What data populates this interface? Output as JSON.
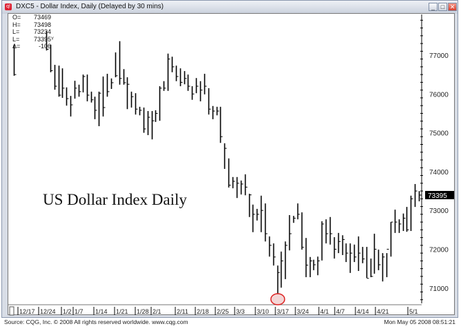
{
  "window": {
    "title": "DXC5 - Dollar Index, Daily (Delayed by 30 mins)",
    "app_icon": "cqg-icon",
    "buttons": {
      "minimize": "_",
      "maximize": "□",
      "close": "✕"
    }
  },
  "quote_box": {
    "rows": [
      {
        "label": "O=",
        "value": "73469"
      },
      {
        "label": "H=",
        "value": "73498"
      },
      {
        "label": "L=",
        "value": "73234"
      },
      {
        "label": "L=",
        "value": "73395",
        "suffix": "Y"
      },
      {
        "label": "Δ=",
        "value": "-106"
      }
    ]
  },
  "annotation": "US Dollar Index Daily",
  "footer": {
    "source": "Source: CQG, Inc. © 2008 All rights reserved worldwide. www.cqg.com",
    "timestamp": "Mon May 05 2008 08:51:21"
  },
  "colors": {
    "bars": "#000000",
    "last_price_bg": "#000000",
    "last_price_fg": "#ffffff",
    "marker": "#dd2222"
  },
  "chart_data": {
    "type": "ohlc",
    "title": "DXC5 - Dollar Index, Daily (Delayed by 30 mins)",
    "ylim": [
      70600,
      77900
    ],
    "y_ticks": [
      71000,
      72000,
      73000,
      74000,
      75000,
      76000,
      77000
    ],
    "y_tick_labels": [
      "71000",
      "72000",
      "73000",
      "74000",
      "75000",
      "76000",
      "77000"
    ],
    "last_price_label": "73395",
    "x_tick_labels": [
      "12/17",
      "12/24",
      "1/2",
      "1/7",
      "1/14",
      "1/21",
      "1/28",
      "2/1",
      "2/11",
      "2/18",
      "2/25",
      "3/3",
      "3/10",
      "3/17",
      "3/24",
      "4/1",
      "4/7",
      "4/14",
      "4/21",
      "5/1"
    ],
    "low_marker_date": "2008-03-17",
    "grid": false,
    "bars_fields": [
      "date",
      "high",
      "low",
      "close"
    ],
    "bars": [
      [
        "2007-12-14",
        77270,
        76470,
        76500
      ],
      [
        "2007-12-26",
        77620,
        77120,
        77150
      ],
      [
        "2007-12-27",
        77270,
        76560,
        76600
      ],
      [
        "2007-12-28",
        76750,
        76110,
        76200
      ],
      [
        "2007-12-31",
        76730,
        75930,
        75970
      ],
      [
        "2008-01-02",
        76660,
        75900,
        76150
      ],
      [
        "2008-01-03",
        76170,
        75700,
        75880
      ],
      [
        "2008-01-04",
        75950,
        75420,
        75720
      ],
      [
        "2008-01-07",
        76340,
        75880,
        76150
      ],
      [
        "2008-01-08",
        76240,
        75930,
        76060
      ],
      [
        "2008-01-09",
        76500,
        76040,
        76450
      ],
      [
        "2008-01-10",
        76500,
        75810,
        75970
      ],
      [
        "2008-01-11",
        76060,
        75780,
        75850
      ],
      [
        "2008-01-14",
        75930,
        75350,
        75580
      ],
      [
        "2008-01-15",
        76060,
        75170,
        76020
      ],
      [
        "2008-01-16",
        76450,
        75420,
        75650
      ],
      [
        "2008-01-17",
        76520,
        75930,
        76060
      ],
      [
        "2008-01-18",
        76400,
        76130,
        76290
      ],
      [
        "2008-01-21",
        77070,
        76430,
        76470
      ],
      [
        "2008-01-22",
        77360,
        76240,
        76400
      ],
      [
        "2008-01-23",
        76640,
        76240,
        76290
      ],
      [
        "2008-01-24",
        76430,
        75610,
        76250
      ],
      [
        "2008-01-25",
        76060,
        75650,
        75930
      ],
      [
        "2008-01-28",
        76020,
        75470,
        75610
      ],
      [
        "2008-01-29",
        75670,
        75450,
        75580
      ],
      [
        "2008-01-30",
        75650,
        75000,
        75100
      ],
      [
        "2008-01-31",
        75560,
        74940,
        75400
      ],
      [
        "2008-02-01",
        75560,
        74830,
        75310
      ],
      [
        "2008-02-04",
        75580,
        75280,
        75500
      ],
      [
        "2008-02-05",
        76200,
        75310,
        76150
      ],
      [
        "2008-02-06",
        76330,
        76080,
        76150
      ],
      [
        "2008-02-07",
        77040,
        76080,
        76900
      ],
      [
        "2008-02-08",
        76960,
        76560,
        76700
      ],
      [
        "2008-02-11",
        76730,
        76330,
        76450
      ],
      [
        "2008-02-12",
        76660,
        76200,
        76300
      ],
      [
        "2008-02-13",
        76590,
        76250,
        76400
      ],
      [
        "2008-02-14",
        76500,
        76080,
        76200
      ],
      [
        "2008-02-15",
        76200,
        75850,
        76000
      ],
      [
        "2008-02-18",
        76410,
        76020,
        76200
      ],
      [
        "2008-02-19",
        76330,
        75810,
        76100
      ],
      [
        "2008-02-20",
        76520,
        75990,
        76200
      ],
      [
        "2008-02-21",
        76150,
        75470,
        75610
      ],
      [
        "2008-02-22",
        75690,
        75350,
        75560
      ],
      [
        "2008-02-25",
        75670,
        75450,
        75560
      ],
      [
        "2008-02-26",
        75670,
        74740,
        74900
      ],
      [
        "2008-02-27",
        74730,
        74070,
        74600
      ],
      [
        "2008-02-28",
        74340,
        73590,
        73650
      ],
      [
        "2008-02-29",
        73860,
        73570,
        73750
      ],
      [
        "2008-03-03",
        73860,
        73320,
        73700
      ],
      [
        "2008-03-04",
        73770,
        73410,
        73680
      ],
      [
        "2008-03-05",
        73930,
        73390,
        73600
      ],
      [
        "2008-03-06",
        73430,
        72830,
        73400
      ],
      [
        "2008-03-07",
        73150,
        72440,
        72900
      ],
      [
        "2008-03-10",
        73040,
        72740,
        72900
      ],
      [
        "2008-03-11",
        73380,
        72440,
        73000
      ],
      [
        "2008-03-12",
        73180,
        72200,
        72400
      ],
      [
        "2008-03-13",
        72330,
        71810,
        72100
      ],
      [
        "2008-03-14",
        72150,
        71580,
        71800
      ],
      [
        "2008-03-17",
        71580,
        70730,
        71400
      ],
      [
        "2008-03-18",
        71940,
        71010,
        71700
      ],
      [
        "2008-03-19",
        72200,
        71230,
        72100
      ],
      [
        "2008-03-20",
        72880,
        71970,
        72400
      ],
      [
        "2008-03-21",
        72860,
        72680,
        72800
      ],
      [
        "2008-03-24",
        73180,
        72770,
        72900
      ],
      [
        "2008-03-25",
        72950,
        71990,
        72050
      ],
      [
        "2008-03-26",
        72290,
        71280,
        71590
      ],
      [
        "2008-03-27",
        71800,
        71280,
        71700
      ],
      [
        "2008-03-28",
        71730,
        71460,
        71600
      ],
      [
        "2008-03-31",
        71810,
        71330,
        71700
      ],
      [
        "2008-04-01",
        72720,
        71710,
        72650
      ],
      [
        "2008-04-02",
        72770,
        72150,
        72400
      ],
      [
        "2008-04-03",
        72830,
        72120,
        72400
      ],
      [
        "2008-04-04",
        72310,
        71760,
        72000
      ],
      [
        "2008-04-07",
        72420,
        71900,
        72200
      ],
      [
        "2008-04-08",
        72360,
        71850,
        72250
      ],
      [
        "2008-04-09",
        72150,
        71670,
        71900
      ],
      [
        "2008-04-10",
        72150,
        71390,
        71900
      ],
      [
        "2008-04-11",
        72120,
        71670,
        71800
      ],
      [
        "2008-04-14",
        72330,
        71440,
        71900
      ],
      [
        "2008-04-15",
        72060,
        71640,
        71750
      ],
      [
        "2008-04-16",
        72060,
        71260,
        71250
      ],
      [
        "2008-04-17",
        71760,
        71280,
        71300
      ],
      [
        "2008-04-18",
        72400,
        71370,
        72000
      ],
      [
        "2008-04-21",
        71990,
        71460,
        71600
      ],
      [
        "2008-04-22",
        71900,
        71170,
        71800
      ],
      [
        "2008-04-23",
        71900,
        71280,
        72000
      ],
      [
        "2008-04-24",
        72700,
        71810,
        72700
      ],
      [
        "2008-04-25",
        73020,
        72420,
        72700
      ],
      [
        "2008-04-28",
        72770,
        72420,
        72650
      ],
      [
        "2008-04-29",
        72920,
        72470,
        72800
      ],
      [
        "2008-04-30",
        73090,
        72450,
        72500
      ],
      [
        "2008-05-01",
        73380,
        72470,
        73300
      ],
      [
        "2008-05-02",
        73680,
        73090,
        73500
      ],
      [
        "2008-05-05",
        73498,
        73234,
        73395
      ]
    ]
  }
}
